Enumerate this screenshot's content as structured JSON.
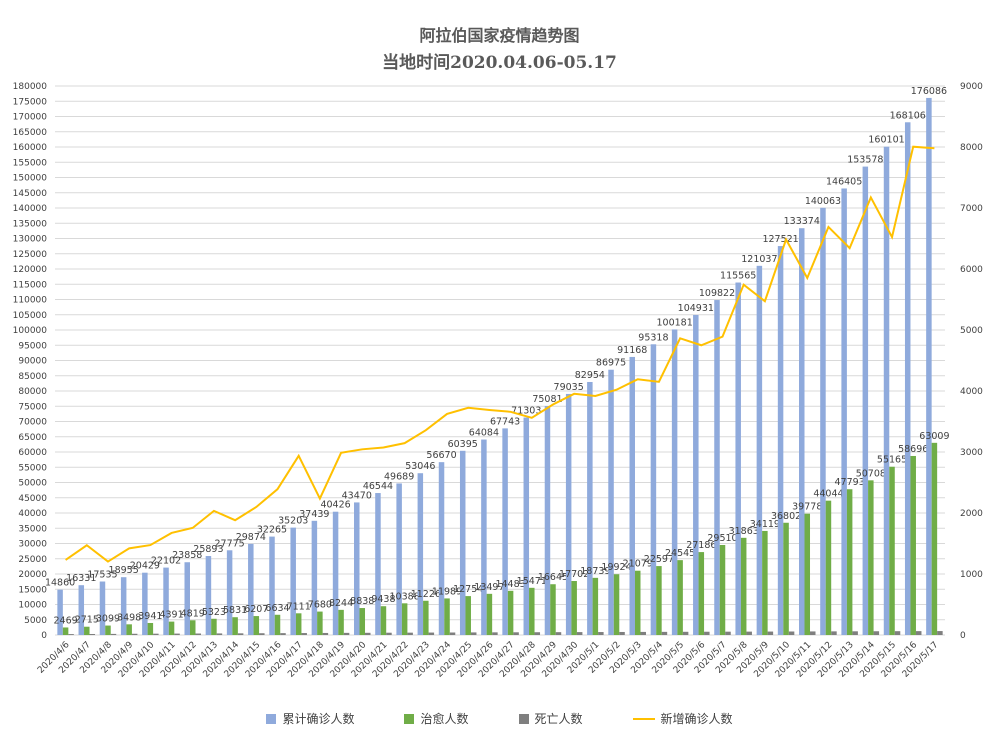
{
  "chart_data": {
    "type": "bar",
    "title": "阿拉伯国家疫情趋势图",
    "subtitle": "当地时间2020.04.06-05.17",
    "categories": [
      "2020/4/6",
      "2020/4/7",
      "2020/4/8",
      "2020/4/9",
      "2020/4/10",
      "2020/4/11",
      "2020/4/12",
      "2020/4/13",
      "2020/4/14",
      "2020/4/15",
      "2020/4/16",
      "2020/4/17",
      "2020/4/18",
      "2020/4/19",
      "2020/4/20",
      "2020/4/21",
      "2020/4/22",
      "2020/4/23",
      "2020/4/24",
      "2020/4/25",
      "2020/4/26",
      "2020/4/27",
      "2020/4/28",
      "2020/4/29",
      "2020/4/30",
      "2020/5/1",
      "2020/5/2",
      "2020/5/3",
      "2020/5/4",
      "2020/5/5",
      "2020/5/6",
      "2020/5/7",
      "2020/5/8",
      "2020/5/9",
      "2020/5/10",
      "2020/5/11",
      "2020/5/12",
      "2020/5/13",
      "2020/5/14",
      "2020/5/15",
      "2020/5/16",
      "2020/5/17"
    ],
    "series": [
      {
        "name": "累计确诊人数",
        "type": "bar",
        "axis": "left",
        "color": "#8faadc",
        "labels": true,
        "values": [
          14860,
          16331,
          17535,
          18955,
          20429,
          22102,
          23858,
          25893,
          27775,
          29874,
          32265,
          35203,
          37439,
          40426,
          43470,
          46544,
          49689,
          53046,
          56670,
          60395,
          64084,
          67743,
          71303,
          75081,
          79035,
          82954,
          86975,
          91168,
          95318,
          100181,
          104931,
          109822,
          115565,
          121037,
          127521,
          133374,
          140063,
          146405,
          153578,
          160101,
          168106,
          176086
        ]
      },
      {
        "name": "治愈人数",
        "type": "bar",
        "axis": "left",
        "color": "#70ad47",
        "labels": true,
        "values": [
          2469,
          2715,
          3099,
          3498,
          3941,
          4391,
          4819,
          5323,
          5831,
          6207,
          6634,
          7111,
          7680,
          8244,
          8838,
          9438,
          10388,
          11226,
          11989,
          12754,
          13497,
          14483,
          15471,
          16645,
          17702,
          18739,
          19924,
          21079,
          22597,
          24545,
          27186,
          29510,
          31863,
          34119,
          36802,
          39778,
          44044,
          47793,
          50708,
          55165,
          58696,
          63009
        ]
      },
      {
        "name": "死亡人数",
        "type": "bar",
        "axis": "left",
        "color": "#7f7f7f",
        "labels": false,
        "values": [
          300,
          330,
          360,
          400,
          430,
          460,
          490,
          520,
          550,
          580,
          610,
          640,
          670,
          700,
          720,
          750,
          770,
          800,
          820,
          850,
          870,
          890,
          910,
          930,
          950,
          970,
          990,
          1010,
          1030,
          1050,
          1070,
          1090,
          1110,
          1130,
          1150,
          1170,
          1190,
          1210,
          1230,
          1250,
          1270,
          1290
        ]
      },
      {
        "name": "新增确诊人数",
        "type": "line",
        "axis": "right",
        "color": "#ffc000",
        "labels": false,
        "values": [
          1230,
          1471,
          1204,
          1420,
          1474,
          1673,
          1756,
          2035,
          1882,
          2099,
          2391,
          2938,
          2236,
          2987,
          3044,
          3074,
          3145,
          3357,
          3624,
          3725,
          3689,
          3659,
          3560,
          3778,
          3954,
          3919,
          4021,
          4193,
          4150,
          4863,
          4750,
          4891,
          5743,
          5472,
          6484,
          5853,
          6689,
          6342,
          7173,
          6523,
          8005,
          7980
        ]
      }
    ],
    "ylim": [
      0,
      180000
    ],
    "ytick_step": 5000,
    "y2lim": [
      0,
      9000
    ],
    "y2tick_step": 1000,
    "grid": true,
    "legend": "bottom"
  }
}
